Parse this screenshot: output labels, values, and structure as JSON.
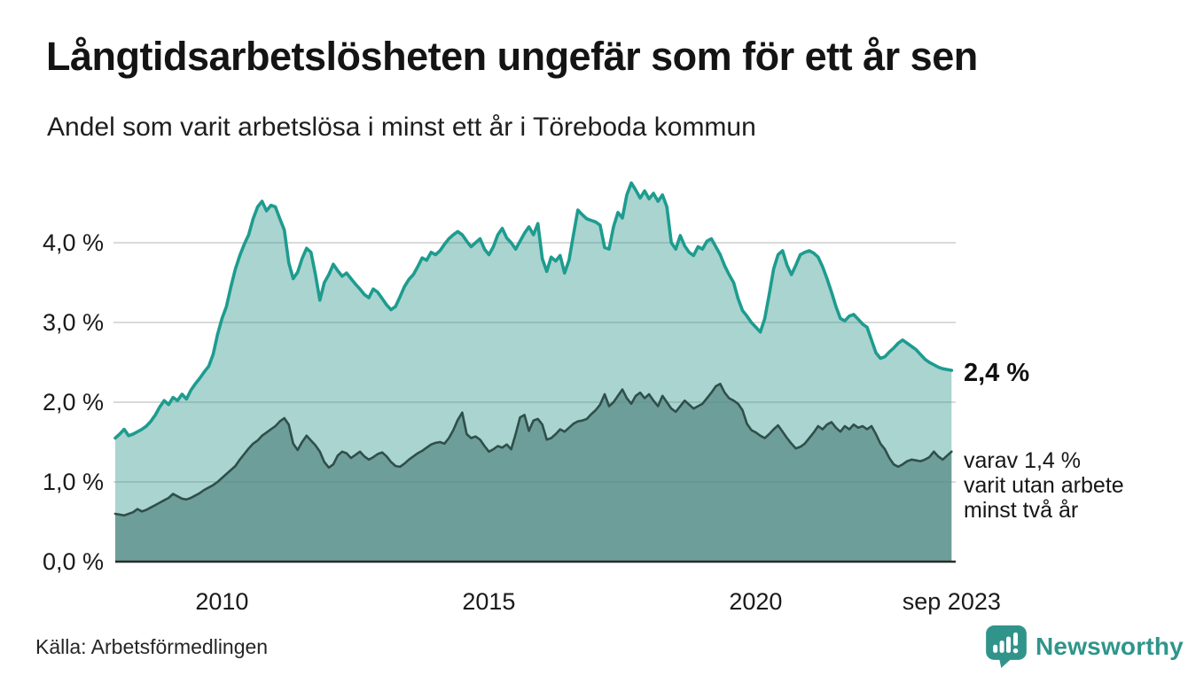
{
  "header": {
    "title": "Långtidsarbetslösheten ungefär som för ett år sen",
    "subtitle": "Andel som varit arbetslösa i minst ett år i Töreboda kommun"
  },
  "annotations": {
    "latest_total": "2,4 %",
    "latest_two_year_line1": "varav 1,4 %",
    "latest_two_year_line2": "varit utan arbete",
    "latest_two_year_line3": "minst två år"
  },
  "footer": {
    "source": "Källa: Arbetsförmedlingen",
    "brand": "Newsworthy"
  },
  "colors": {
    "line_one_year": "#1D9C8F",
    "fill_one_year": "rgba(42,148,134,0.40)",
    "line_two_year": "#2F4F4A",
    "fill_two_year": "rgba(88,137,131,0.72)",
    "gridline": "#DADADA",
    "baseline": "#2B2B2B",
    "brand_teal": "#31948A"
  },
  "chart_data": {
    "type": "area",
    "title": "Långtidsarbetslösheten ungefär som för ett år sen",
    "subtitle": "Andel som varit arbetslösa i minst ett år i Töreboda kommun",
    "unit": "%",
    "frequency": "monthly",
    "x_start": 2008.0,
    "x_end": 2023.67,
    "x_end_label": "sep 2023",
    "ylim": [
      0,
      4.8
    ],
    "grid": true,
    "yticks": [
      {
        "value": 0.0,
        "label": "0,0 %"
      },
      {
        "value": 1.0,
        "label": "1,0 %"
      },
      {
        "value": 2.0,
        "label": "2,0 %"
      },
      {
        "value": 3.0,
        "label": "3,0 %"
      },
      {
        "value": 4.0,
        "label": "4,0 %"
      }
    ],
    "xticks": [
      {
        "value": 2010,
        "label": "2010"
      },
      {
        "value": 2015,
        "label": "2015"
      },
      {
        "value": 2020,
        "label": "2020"
      },
      {
        "value": 2023.67,
        "label": "sep 2023"
      }
    ],
    "series": [
      {
        "name": "Arbetslösa minst ett år",
        "latest_value": 2.4,
        "values": [
          1.55,
          1.6,
          1.66,
          1.58,
          1.6,
          1.63,
          1.66,
          1.7,
          1.76,
          1.84,
          1.94,
          2.02,
          1.97,
          2.06,
          2.02,
          2.1,
          2.04,
          2.15,
          2.23,
          2.3,
          2.38,
          2.45,
          2.6,
          2.85,
          3.05,
          3.2,
          3.45,
          3.67,
          3.84,
          3.98,
          4.1,
          4.3,
          4.45,
          4.52,
          4.4,
          4.47,
          4.45,
          4.3,
          4.16,
          3.75,
          3.55,
          3.63,
          3.8,
          3.93,
          3.88,
          3.6,
          3.28,
          3.5,
          3.6,
          3.73,
          3.65,
          3.58,
          3.62,
          3.55,
          3.48,
          3.42,
          3.35,
          3.31,
          3.42,
          3.38,
          3.3,
          3.22,
          3.16,
          3.2,
          3.32,
          3.45,
          3.54,
          3.6,
          3.7,
          3.81,
          3.78,
          3.88,
          3.85,
          3.9,
          3.98,
          4.05,
          4.1,
          4.14,
          4.1,
          4.02,
          3.95,
          4.0,
          4.05,
          3.92,
          3.85,
          3.95,
          4.1,
          4.18,
          4.06,
          4.0,
          3.92,
          4.02,
          4.12,
          4.2,
          4.1,
          4.24,
          3.8,
          3.64,
          3.82,
          3.77,
          3.84,
          3.62,
          3.78,
          4.1,
          4.41,
          4.35,
          4.3,
          4.28,
          4.26,
          4.22,
          3.94,
          3.92,
          4.2,
          4.38,
          4.31,
          4.6,
          4.75,
          4.66,
          4.56,
          4.65,
          4.55,
          4.62,
          4.52,
          4.6,
          4.45,
          4.0,
          3.92,
          4.09,
          3.96,
          3.88,
          3.84,
          3.95,
          3.92,
          4.02,
          4.05,
          3.95,
          3.85,
          3.71,
          3.6,
          3.5,
          3.3,
          3.15,
          3.08,
          3.0,
          2.94,
          2.88,
          3.05,
          3.35,
          3.67,
          3.85,
          3.9,
          3.72,
          3.6,
          3.72,
          3.85,
          3.88,
          3.9,
          3.87,
          3.82,
          3.7,
          3.55,
          3.38,
          3.2,
          3.05,
          3.02,
          3.08,
          3.1,
          3.04,
          2.98,
          2.94,
          2.78,
          2.62,
          2.55,
          2.57,
          2.63,
          2.68,
          2.74,
          2.78,
          2.74,
          2.7,
          2.66,
          2.6,
          2.54,
          2.5,
          2.47,
          2.44,
          2.42,
          2.41,
          2.4
        ]
      },
      {
        "name": "Arbetslösa minst två år",
        "latest_value": 1.4,
        "values": [
          0.6,
          0.59,
          0.58,
          0.6,
          0.62,
          0.66,
          0.63,
          0.65,
          0.68,
          0.71,
          0.74,
          0.77,
          0.8,
          0.85,
          0.82,
          0.79,
          0.78,
          0.8,
          0.83,
          0.86,
          0.9,
          0.93,
          0.96,
          1.0,
          1.05,
          1.1,
          1.15,
          1.2,
          1.28,
          1.35,
          1.42,
          1.48,
          1.52,
          1.58,
          1.62,
          1.66,
          1.7,
          1.76,
          1.8,
          1.72,
          1.48,
          1.4,
          1.5,
          1.58,
          1.52,
          1.46,
          1.38,
          1.25,
          1.18,
          1.22,
          1.33,
          1.38,
          1.36,
          1.3,
          1.34,
          1.38,
          1.32,
          1.28,
          1.31,
          1.35,
          1.37,
          1.32,
          1.25,
          1.2,
          1.19,
          1.23,
          1.28,
          1.32,
          1.36,
          1.39,
          1.43,
          1.47,
          1.49,
          1.5,
          1.48,
          1.55,
          1.65,
          1.78,
          1.87,
          1.6,
          1.55,
          1.57,
          1.53,
          1.45,
          1.38,
          1.41,
          1.45,
          1.43,
          1.47,
          1.41,
          1.6,
          1.81,
          1.84,
          1.64,
          1.77,
          1.79,
          1.72,
          1.53,
          1.55,
          1.6,
          1.66,
          1.63,
          1.68,
          1.73,
          1.76,
          1.77,
          1.79,
          1.85,
          1.9,
          1.97,
          2.1,
          1.95,
          2.0,
          2.08,
          2.16,
          2.05,
          1.98,
          2.08,
          2.12,
          2.05,
          2.1,
          2.02,
          1.95,
          2.08,
          2.0,
          1.92,
          1.88,
          1.95,
          2.02,
          1.97,
          1.92,
          1.95,
          1.98,
          2.05,
          2.12,
          2.2,
          2.23,
          2.12,
          2.05,
          2.02,
          1.98,
          1.9,
          1.73,
          1.65,
          1.62,
          1.58,
          1.55,
          1.6,
          1.66,
          1.71,
          1.63,
          1.55,
          1.48,
          1.42,
          1.44,
          1.48,
          1.55,
          1.62,
          1.7,
          1.66,
          1.72,
          1.75,
          1.68,
          1.63,
          1.7,
          1.66,
          1.72,
          1.68,
          1.7,
          1.66,
          1.7,
          1.6,
          1.48,
          1.41,
          1.3,
          1.22,
          1.19,
          1.22,
          1.26,
          1.28,
          1.27,
          1.26,
          1.28,
          1.31,
          1.38,
          1.32,
          1.28,
          1.33,
          1.38
        ]
      }
    ]
  }
}
